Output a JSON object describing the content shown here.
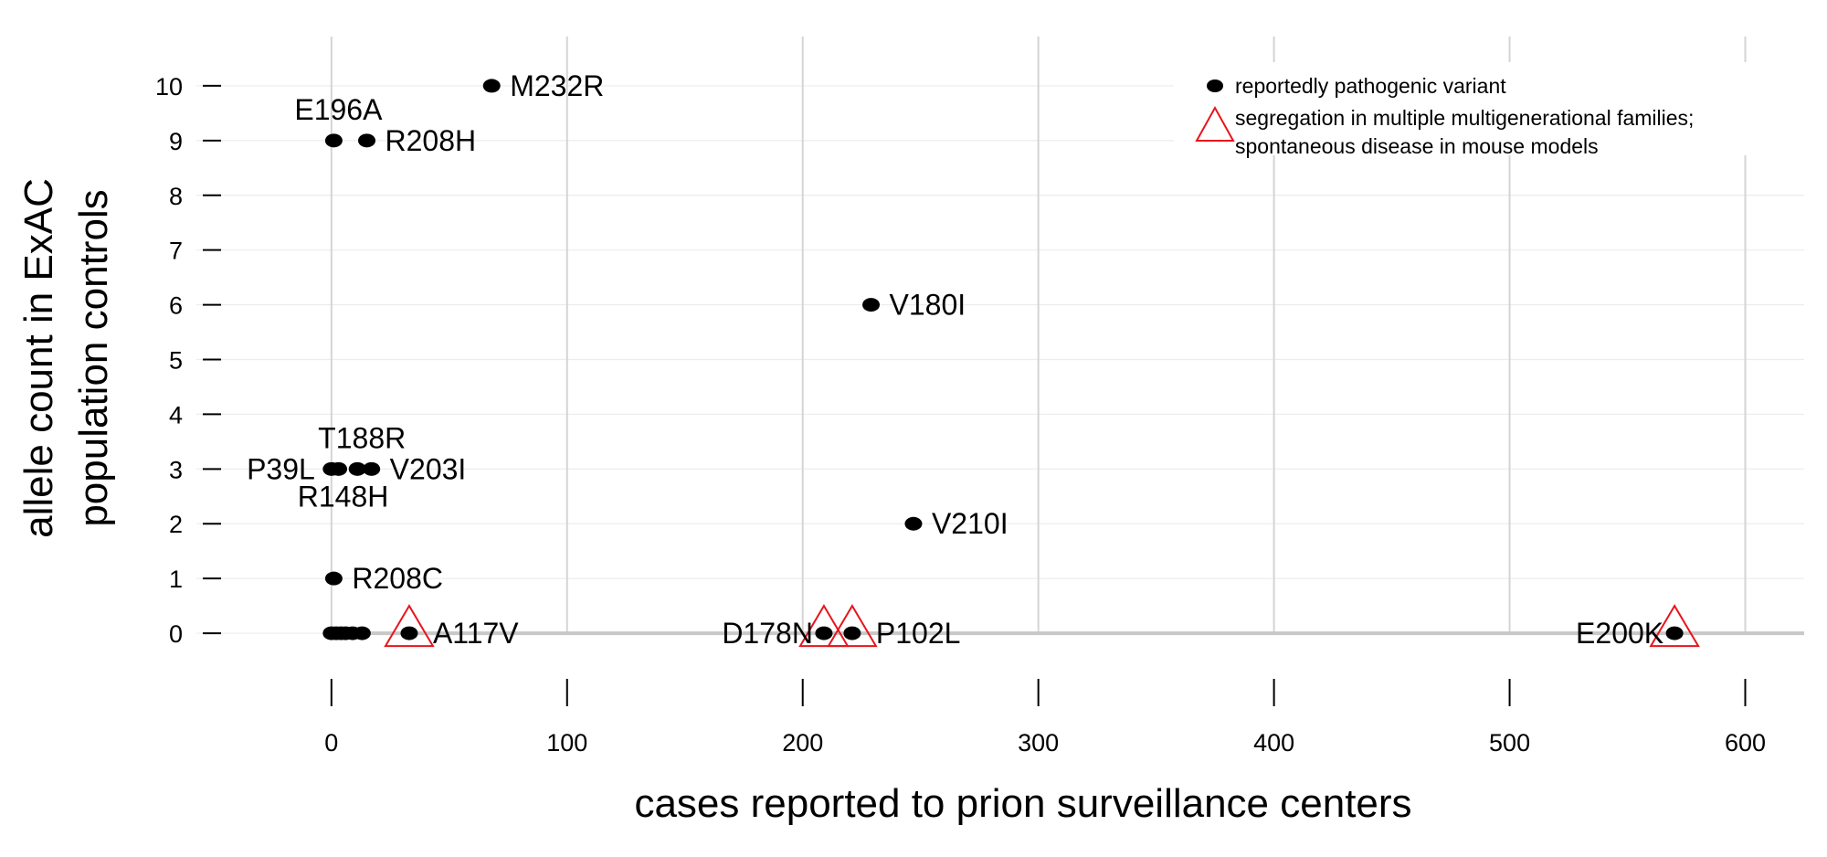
{
  "chart_data": {
    "type": "scatter",
    "xlabel": "cases reported to prion surveillance centers",
    "ylabel_lines": [
      "allele count in ExAC",
      "population controls"
    ],
    "xlim": [
      -67,
      625
    ],
    "ylim": [
      -0.95,
      10.9
    ],
    "x_ticks": [
      0,
      100,
      200,
      300,
      400,
      500,
      600
    ],
    "y_ticks": [
      0,
      1,
      2,
      3,
      4,
      5,
      6,
      7,
      8,
      9,
      10
    ],
    "grid": true,
    "legend_position": "top-right",
    "legend": [
      {
        "marker": "filled-ellipse",
        "label": "reportedly pathogenic variant"
      },
      {
        "marker": "open-triangle",
        "label_lines": [
          "segregation in multiple multigenerational families;",
          "spontaneous disease in mouse models"
        ]
      }
    ],
    "points": [
      {
        "label": "M232R",
        "x": 68,
        "y": 10,
        "label_pos": "right"
      },
      {
        "label": "E196A",
        "x": 1,
        "y": 9,
        "label_pos": "above"
      },
      {
        "label": "R208H",
        "x": 15,
        "y": 9,
        "label_pos": "right"
      },
      {
        "label": "V180I",
        "x": 229,
        "y": 6,
        "label_pos": "right"
      },
      {
        "label": "T188R",
        "x": 11,
        "y": 3,
        "label_pos": "above"
      },
      {
        "label": "P39L",
        "x": 0,
        "y": 3,
        "label_pos": "left"
      },
      {
        "label": "V203I",
        "x": 17,
        "y": 3,
        "label_pos": "right"
      },
      {
        "label": "R148H",
        "x": 3,
        "y": 3,
        "label_pos": "below"
      },
      {
        "label": "V210I",
        "x": 247,
        "y": 2,
        "label_pos": "right"
      },
      {
        "label": "R208C",
        "x": 1,
        "y": 1,
        "label_pos": "right"
      },
      {
        "label": "A117V",
        "x": 33,
        "y": 0,
        "label_pos": "right",
        "triangle": true
      },
      {
        "label": "D178N",
        "x": 209,
        "y": 0,
        "label_pos": "left",
        "triangle": true
      },
      {
        "label": "P102L",
        "x": 221,
        "y": 0,
        "label_pos": "right",
        "triangle": true
      },
      {
        "label": "E200K",
        "x": 570,
        "y": 0,
        "label_pos": "left",
        "triangle": true
      },
      {
        "label": "",
        "x": 0,
        "y": 0
      },
      {
        "label": "",
        "x": 2,
        "y": 0
      },
      {
        "label": "",
        "x": 4,
        "y": 0
      },
      {
        "label": "",
        "x": 6,
        "y": 0
      },
      {
        "label": "",
        "x": 9,
        "y": 0
      },
      {
        "label": "",
        "x": 13,
        "y": 0
      }
    ]
  },
  "colors": {
    "point": "#000000",
    "triangle": "#e8141c",
    "grid_major": "#d4d4d4",
    "grid_minor": "#ececec",
    "axis_line": "#c8c8c8"
  }
}
